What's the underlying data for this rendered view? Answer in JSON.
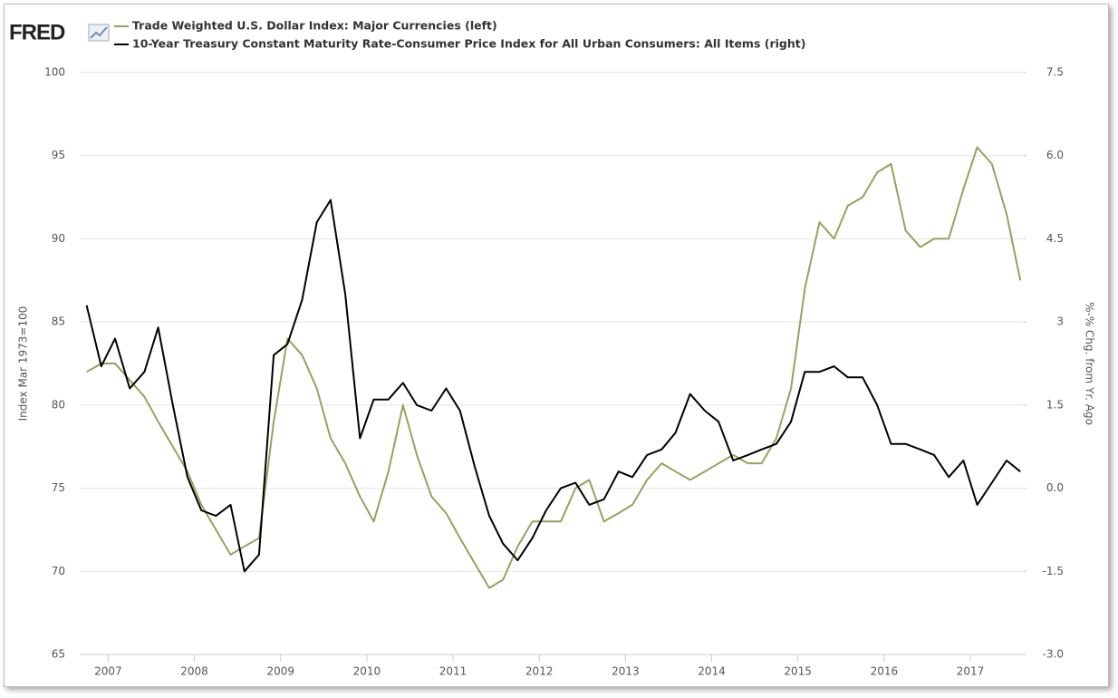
{
  "logo": "FRED",
  "chart_data": {
    "type": "line",
    "legend": "top-left",
    "grid": true,
    "ylabel": "Index Mar 1973=100",
    "y2label": "%-% Chg. from Yr. Ago",
    "x": [
      2006.75,
      2006.92,
      2007.08,
      2007.25,
      2007.42,
      2007.58,
      2007.75,
      2007.92,
      2008.08,
      2008.25,
      2008.42,
      2008.58,
      2008.75,
      2008.92,
      2009.08,
      2009.25,
      2009.42,
      2009.58,
      2009.75,
      2009.92,
      2010.08,
      2010.25,
      2010.42,
      2010.58,
      2010.75,
      2010.92,
      2011.08,
      2011.25,
      2011.42,
      2011.58,
      2011.75,
      2011.92,
      2012.08,
      2012.25,
      2012.42,
      2012.58,
      2012.75,
      2012.92,
      2013.08,
      2013.25,
      2013.42,
      2013.58,
      2013.75,
      2013.92,
      2014.08,
      2014.25,
      2014.42,
      2014.58,
      2014.75,
      2014.92,
      2015.08,
      2015.25,
      2015.42,
      2015.58,
      2015.75,
      2015.92,
      2016.08,
      2016.25,
      2016.42,
      2016.58,
      2016.75,
      2016.92,
      2017.08,
      2017.25,
      2017.42,
      2017.58
    ],
    "xlim": [
      2006.67,
      2017.62
    ],
    "xticks": [
      2007,
      2008,
      2009,
      2010,
      2011,
      2012,
      2013,
      2014,
      2015,
      2016,
      2017
    ],
    "ylim": [
      65,
      100
    ],
    "yticks": [
      65,
      70,
      75,
      80,
      85,
      90,
      95,
      100
    ],
    "y2lim": [
      -3,
      7.5
    ],
    "y2ticks": [
      {
        "value": -3,
        "label": "-3.0"
      },
      -1.5,
      {
        "value": 0,
        "label": "0.0"
      },
      1.5,
      3.0,
      4.5,
      {
        "value": 6,
        "label": "6.0"
      },
      7.5
    ],
    "series": [
      {
        "name": "Trade Weighted U.S. Dollar Index: Major Currencies (left)",
        "color": "#8fa65c",
        "axis": "y",
        "values": [
          82,
          82.5,
          82.5,
          81.5,
          80.5,
          79,
          77.5,
          76,
          74,
          72.5,
          71,
          71.5,
          72,
          79,
          84,
          83,
          81,
          78,
          76.5,
          74.5,
          73,
          76,
          80,
          77,
          74.5,
          73.5,
          72,
          70.5,
          69,
          69.5,
          71.5,
          73,
          73,
          73,
          75,
          75.5,
          73,
          73.5,
          74,
          75.5,
          76.5,
          76,
          75.5,
          76,
          76.5,
          77,
          76.5,
          76.5,
          78,
          81,
          87,
          91,
          90,
          92,
          92.5,
          94,
          94.5,
          90.5,
          89.5,
          90,
          90,
          93,
          95.5,
          94.5,
          91.5,
          87.5
        ]
      },
      {
        "name": "10-Year Treasury Constant Maturity Rate-Consumer Price Index for All Urban Consumers: All Items (right)",
        "color": "#000000",
        "axis": "y2",
        "values": [
          3.3,
          2.2,
          2.7,
          1.8,
          2.1,
          2.9,
          1.5,
          0.2,
          -0.4,
          -0.5,
          -0.3,
          -1.5,
          -1.2,
          2.4,
          2.6,
          3.4,
          4.8,
          5.2,
          3.5,
          0.9,
          1.6,
          1.6,
          1.9,
          1.5,
          1.4,
          1.8,
          1.4,
          0.4,
          -0.5,
          -1.0,
          -1.3,
          -0.9,
          -0.4,
          0.0,
          0.1,
          -0.3,
          -0.2,
          0.3,
          0.2,
          0.6,
          0.7,
          1.0,
          1.7,
          1.4,
          1.2,
          0.5,
          0.6,
          0.7,
          0.8,
          1.2,
          2.1,
          2.1,
          2.2,
          2.0,
          2.0,
          1.5,
          0.8,
          0.8,
          0.7,
          0.6,
          0.2,
          0.5,
          -0.3,
          0.1,
          0.5,
          0.3
        ]
      }
    ]
  }
}
